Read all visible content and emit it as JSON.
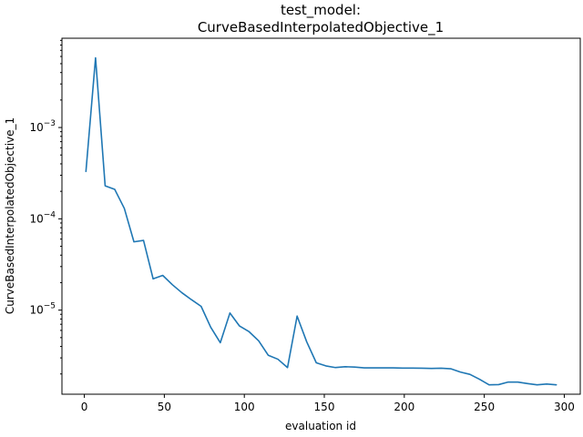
{
  "chart_data": {
    "type": "line",
    "title_line1": "test_model:",
    "title_line2": "CurveBasedInterpolatedObjective_1",
    "xlabel": "evaluation id",
    "ylabel": "CurveBasedInterpolatedObjective_1",
    "yscale": "log",
    "xlim": [
      -14,
      310
    ],
    "ylim": [
      1.2e-06,
      0.0095
    ],
    "grid": false,
    "x_ticks": [
      0,
      50,
      100,
      150,
      200,
      250,
      300
    ],
    "x_tick_labels": [
      "0",
      "50",
      "100",
      "150",
      "200",
      "250",
      "300"
    ],
    "y_major_ticks": [
      1e-05,
      0.0001,
      0.001
    ],
    "y_tick_labels": [
      {
        "base": "10",
        "exp": "−5"
      },
      {
        "base": "10",
        "exp": "−4"
      },
      {
        "base": "10",
        "exp": "−3"
      }
    ],
    "color": "#1f77b4",
    "series": [
      {
        "x": [
          1,
          7,
          13,
          19,
          25,
          31,
          37,
          43,
          49,
          55,
          61,
          67,
          73,
          79,
          85,
          91,
          97,
          103,
          109,
          115,
          121,
          127,
          133,
          139,
          145,
          151,
          157,
          163,
          169,
          175,
          181,
          187,
          193,
          199,
          205,
          211,
          217,
          223,
          229,
          235,
          241,
          247,
          253,
          259,
          265,
          271,
          277,
          283,
          289,
          295
        ],
        "y": [
          0.00033,
          0.0058,
          0.00023,
          0.00021,
          0.00013,
          5.6e-05,
          5.8e-05,
          2.2e-05,
          2.4e-05,
          1.9e-05,
          1.55e-05,
          1.3e-05,
          1.1e-05,
          6.5e-06,
          4.4e-06,
          9.3e-06,
          6.7e-06,
          5.8e-06,
          4.6e-06,
          3.2e-06,
          2.9e-06,
          2.35e-06,
          8.6e-06,
          4.5e-06,
          2.65e-06,
          2.45e-06,
          2.35e-06,
          2.4e-06,
          2.38e-06,
          2.33e-06,
          2.33e-06,
          2.33e-06,
          2.33e-06,
          2.32e-06,
          2.32e-06,
          2.31e-06,
          2.3e-06,
          2.31e-06,
          2.28e-06,
          2.1e-06,
          1.98e-06,
          1.75e-06,
          1.52e-06,
          1.53e-06,
          1.63e-06,
          1.63e-06,
          1.57e-06,
          1.52e-06,
          1.55e-06,
          1.52e-06
        ]
      }
    ]
  }
}
